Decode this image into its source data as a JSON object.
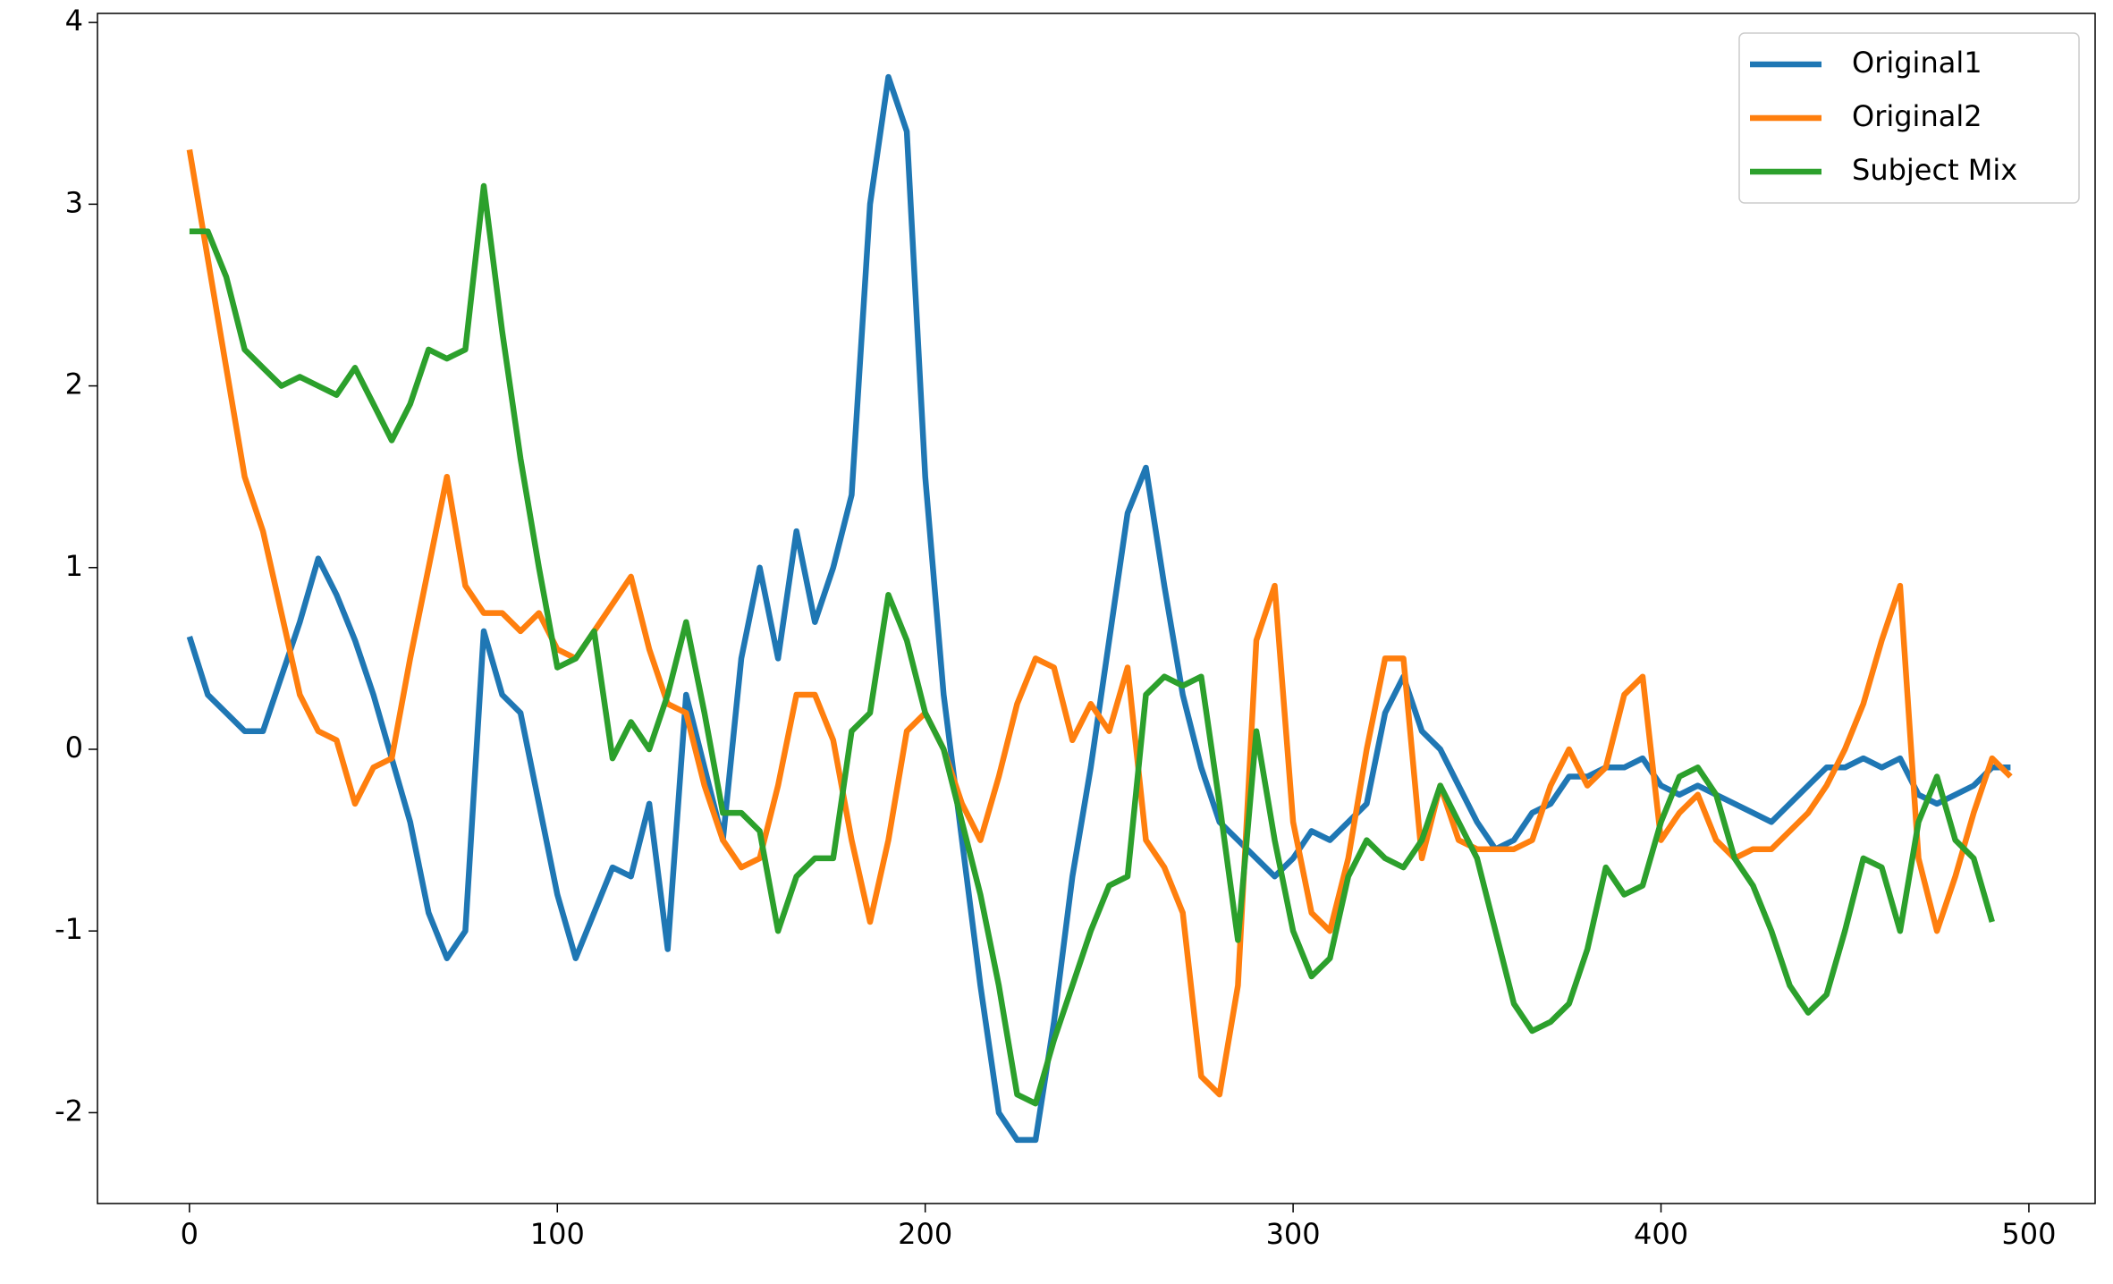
{
  "chart_data": {
    "type": "line",
    "x": [
      0,
      5,
      10,
      15,
      20,
      25,
      30,
      35,
      40,
      45,
      50,
      55,
      60,
      65,
      70,
      75,
      80,
      85,
      90,
      95,
      100,
      105,
      110,
      115,
      120,
      125,
      130,
      135,
      140,
      145,
      150,
      155,
      160,
      165,
      170,
      175,
      180,
      185,
      190,
      195,
      200,
      205,
      210,
      215,
      220,
      225,
      230,
      235,
      240,
      245,
      250,
      255,
      260,
      265,
      270,
      275,
      280,
      285,
      290,
      295,
      300,
      305,
      310,
      315,
      320,
      325,
      330,
      335,
      340,
      345,
      350,
      355,
      360,
      365,
      370,
      375,
      380,
      385,
      390,
      395,
      400,
      405,
      410,
      415,
      420,
      425,
      430,
      435,
      440,
      445,
      450,
      455,
      460,
      465,
      470,
      475,
      480,
      485,
      490,
      495
    ],
    "series": [
      {
        "name": "Original1",
        "color": "#1f77b4",
        "values": [
          0.62,
          0.3,
          0.2,
          0.1,
          0.1,
          0.4,
          0.7,
          1.05,
          0.85,
          0.6,
          0.3,
          -0.05,
          -0.4,
          -0.9,
          -1.15,
          -1.0,
          0.65,
          0.3,
          0.2,
          -0.3,
          -0.8,
          -1.15,
          -0.9,
          -0.65,
          -0.7,
          -0.3,
          -1.1,
          0.3,
          -0.1,
          -0.5,
          0.5,
          1.0,
          0.5,
          1.2,
          0.7,
          1.0,
          1.4,
          3.0,
          3.7,
          3.4,
          1.5,
          0.3,
          -0.5,
          -1.3,
          -2.0,
          -2.15,
          -2.15,
          -1.5,
          -0.7,
          -0.1,
          0.6,
          1.3,
          1.55,
          0.9,
          0.3,
          -0.1,
          -0.4,
          -0.5,
          -0.6,
          -0.7,
          -0.6,
          -0.45,
          -0.5,
          -0.4,
          -0.3,
          0.2,
          0.4,
          0.1,
          0.0,
          -0.2,
          -0.4,
          -0.55,
          -0.5,
          -0.35,
          -0.3,
          -0.15,
          -0.15,
          -0.1,
          -0.1,
          -0.05,
          -0.2,
          -0.25,
          -0.2,
          -0.25,
          -0.3,
          -0.35,
          -0.4,
          -0.3,
          -0.2,
          -0.1,
          -0.1,
          -0.05,
          -0.1,
          -0.05,
          -0.25,
          -0.3,
          -0.25,
          -0.2,
          -0.1,
          -0.1
        ]
      },
      {
        "name": "Original2",
        "color": "#ff7f0e",
        "values": [
          3.3,
          2.7,
          2.1,
          1.5,
          1.2,
          0.75,
          0.3,
          0.1,
          0.05,
          -0.3,
          -0.1,
          -0.05,
          0.5,
          1.0,
          1.5,
          0.9,
          0.75,
          0.75,
          0.65,
          0.75,
          0.55,
          0.5,
          0.65,
          0.8,
          0.95,
          0.55,
          0.25,
          0.2,
          -0.2,
          -0.5,
          -0.65,
          -0.6,
          -0.2,
          0.3,
          0.3,
          0.05,
          -0.5,
          -0.95,
          -0.5,
          0.1,
          0.2,
          0.0,
          -0.3,
          -0.5,
          -0.15,
          0.25,
          0.5,
          0.45,
          0.05,
          0.25,
          0.1,
          0.45,
          -0.5,
          -0.65,
          -0.9,
          -1.8,
          -1.9,
          -1.3,
          0.6,
          0.9,
          -0.4,
          -0.9,
          -1.0,
          -0.6,
          0.0,
          0.5,
          0.5,
          -0.6,
          -0.2,
          -0.5,
          -0.55,
          -0.55,
          -0.55,
          -0.5,
          -0.2,
          0.0,
          -0.2,
          -0.1,
          0.3,
          0.4,
          -0.5,
          -0.35,
          -0.25,
          -0.5,
          -0.6,
          -0.55,
          -0.55,
          -0.45,
          -0.35,
          -0.2,
          0.0,
          0.25,
          0.6,
          0.9,
          -0.6,
          -1.0,
          -0.7,
          -0.35,
          -0.05,
          -0.15
        ]
      },
      {
        "name": "Subject Mix",
        "color": "#2ca02c",
        "values": [
          2.85,
          2.85,
          2.6,
          2.2,
          2.1,
          2.0,
          2.05,
          2.0,
          1.95,
          2.1,
          1.9,
          1.7,
          1.9,
          2.2,
          2.15,
          2.2,
          3.1,
          2.3,
          1.6,
          1.0,
          0.45,
          0.5,
          0.65,
          -0.05,
          0.15,
          0.0,
          0.3,
          0.7,
          0.2,
          -0.35,
          -0.35,
          -0.45,
          -1.0,
          -0.7,
          -0.6,
          -0.6,
          0.1,
          0.2,
          0.85,
          0.6,
          0.2,
          0.0,
          -0.4,
          -0.8,
          -1.3,
          -1.9,
          -1.95,
          -1.6,
          -1.3,
          -1.0,
          -0.75,
          -0.7,
          0.3,
          0.4,
          0.35,
          0.4,
          -0.3,
          -1.05,
          0.1,
          -0.5,
          -1.0,
          -1.25,
          -1.15,
          -0.7,
          -0.5,
          -0.6,
          -0.65,
          -0.5,
          -0.2,
          -0.4,
          -0.6,
          -1.0,
          -1.4,
          -1.55,
          -1.5,
          -1.4,
          -1.1,
          -0.65,
          -0.8,
          -0.75,
          -0.4,
          -0.15,
          -0.1,
          -0.25,
          -0.6,
          -0.75,
          -1.0,
          -1.3,
          -1.45,
          -1.35,
          -1.0,
          -0.6,
          -0.65,
          -1.0,
          -0.4,
          -0.15,
          -0.5,
          -0.6,
          -0.95,
          null
        ]
      }
    ],
    "xlim": [
      -25,
      518
    ],
    "ylim": [
      -2.5,
      4.05
    ],
    "xticks": [
      0,
      100,
      200,
      300,
      400,
      500
    ],
    "yticks": [
      -2,
      -1,
      0,
      1,
      2,
      3,
      4
    ],
    "legend": "upper right",
    "grid": false
  }
}
